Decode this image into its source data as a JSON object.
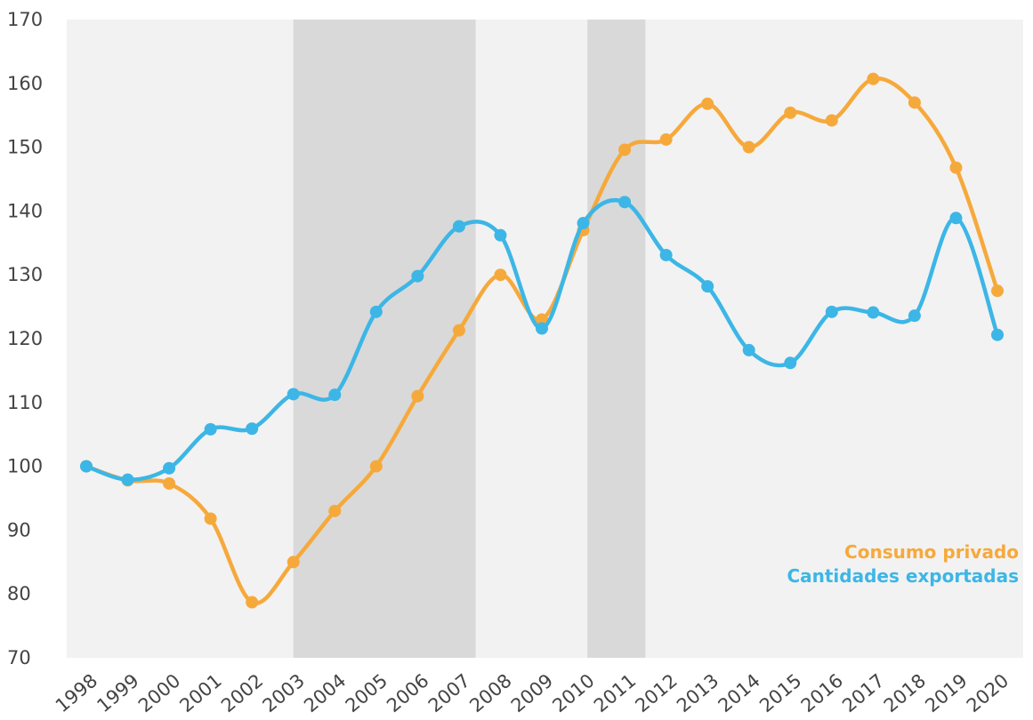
{
  "chart_data": {
    "type": "line",
    "categories": [
      "1998",
      "1999",
      "2000",
      "2001",
      "2002",
      "2003",
      "2004",
      "2005",
      "2006",
      "2007",
      "2008",
      "2009",
      "2010",
      "2011",
      "2012",
      "2013",
      "2014",
      "2015",
      "2016",
      "2017",
      "2018",
      "2019",
      "2020"
    ],
    "series": [
      {
        "name": "Consumo privado",
        "color": "#f6a93b",
        "values": [
          100,
          97.8,
          97.3,
          91.8,
          78.7,
          85,
          93,
          100,
          111,
          121.3,
          130,
          123,
          137,
          149.6,
          151.2,
          156.8,
          150,
          155.4,
          154.2,
          160.7,
          157,
          146.8,
          127.5
        ]
      },
      {
        "name": "Cantidades exportadas",
        "color": "#3cb6e6",
        "values": [
          100,
          97.9,
          99.7,
          105.8,
          105.9,
          111.3,
          111.2,
          124.2,
          129.8,
          137.6,
          136.2,
          121.6,
          138.1,
          141.4,
          133.1,
          128.2,
          118.2,
          116.2,
          124.2,
          124.1,
          123.6,
          138.9,
          120.6
        ]
      }
    ],
    "ylim": [
      70,
      170
    ],
    "yticks": [
      70,
      80,
      90,
      100,
      110,
      120,
      130,
      140,
      150,
      160,
      170
    ],
    "legend": "lower right"
  }
}
